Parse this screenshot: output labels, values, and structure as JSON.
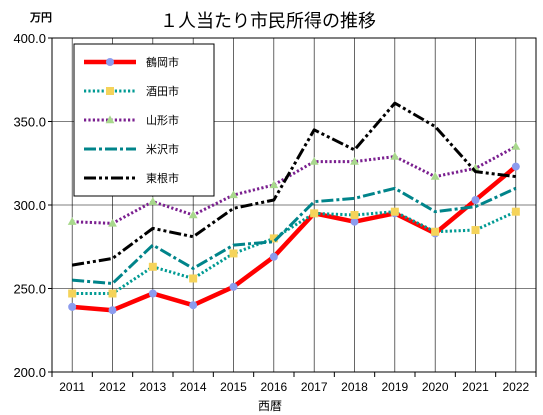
{
  "chart_data": {
    "type": "line",
    "title": "１人当たり市民所得の推移",
    "ylabel": "万円",
    "xlabel": "西暦",
    "x": [
      "2011",
      "2012",
      "2013",
      "2014",
      "2015",
      "2016",
      "2017",
      "2018",
      "2019",
      "2020",
      "2021",
      "2022"
    ],
    "ylim": [
      200,
      400
    ],
    "yticks": [
      "200.0",
      "250.0",
      "300.0",
      "350.0",
      "400.0"
    ],
    "grid": true,
    "legend_position": "top-left",
    "series": [
      {
        "name": "鶴岡市",
        "color": "#ff0000",
        "marker_color": "#8c9cee",
        "marker": "circle",
        "dash": "solid",
        "values": [
          239,
          237,
          247,
          240,
          251,
          269,
          295,
          290,
          295,
          283,
          303,
          323
        ]
      },
      {
        "name": "酒田市",
        "color": "#009a93",
        "marker_color": "#f5d35a",
        "marker": "square",
        "dash": "dot",
        "values": [
          247,
          247,
          263,
          256,
          271,
          280,
          295,
          294,
          296,
          284,
          285,
          296
        ]
      },
      {
        "name": "山形市",
        "color": "#7a1f8f",
        "marker_color": "#a8d88c",
        "marker": "triangle",
        "dash": "dot",
        "values": [
          290,
          289,
          302,
          294,
          306,
          312,
          326,
          326,
          329,
          317,
          322,
          335
        ]
      },
      {
        "name": "米沢市",
        "color": "#00848a",
        "marker_color": "",
        "marker": "none",
        "dash": "dashdot",
        "values": [
          255,
          253,
          276,
          262,
          276,
          278,
          302,
          304,
          310,
          296,
          299,
          310
        ]
      },
      {
        "name": "東根市",
        "color": "#000000",
        "marker_color": "",
        "marker": "none",
        "dash": "dashdotdot",
        "values": [
          264,
          268,
          286,
          281,
          298,
          303,
          345,
          333,
          361,
          347,
          320,
          317
        ]
      }
    ]
  }
}
